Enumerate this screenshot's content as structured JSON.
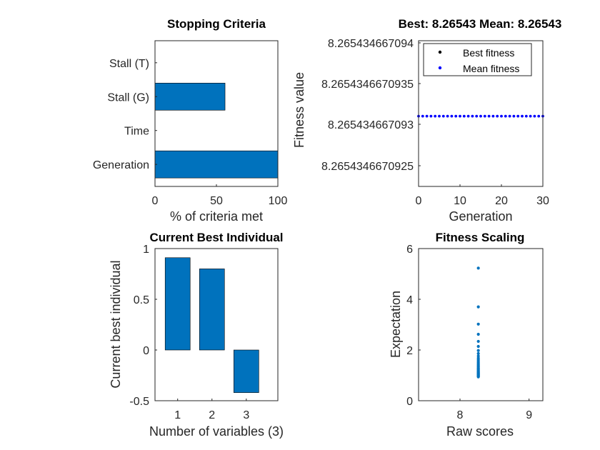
{
  "chart_data": [
    {
      "type": "bar",
      "orientation": "horizontal",
      "title": "Stopping Criteria",
      "xlabel": "% of criteria met",
      "ylabel": "",
      "categories": [
        "Generation",
        "Time",
        "Stall (G)",
        "Stall (T)"
      ],
      "values": [
        100,
        0,
        57,
        0
      ],
      "xlim": [
        0,
        100
      ],
      "xticks": [
        "0",
        "50",
        "100"
      ],
      "bar_color": "#0072BD"
    },
    {
      "type": "scatter",
      "title": "Best: 8.26543 Mean: 8.26543",
      "xlabel": "Generation",
      "ylabel": "Fitness value",
      "xlim": [
        0,
        30
      ],
      "xticks": [
        "0",
        "10",
        "20",
        "30"
      ],
      "yticks": [
        "8.265434667094",
        "8.2654346670935",
        "8.265434667093",
        "8.2654346670925"
      ],
      "legend": {
        "position": "top-right"
      },
      "series": [
        {
          "name": "Best fitness",
          "color": "#000000",
          "y": 8.2654346670931,
          "generations": [
            0,
            1,
            2,
            3,
            4,
            5,
            6,
            7,
            8,
            9,
            10,
            11,
            12,
            13,
            14,
            15,
            16,
            17,
            18,
            19,
            20,
            21,
            22,
            23,
            24,
            25,
            26,
            27,
            28,
            29,
            30
          ]
        },
        {
          "name": "Mean fitness",
          "color": "#0000FF",
          "y": 8.2654346670931,
          "generations": [
            0,
            1,
            2,
            3,
            4,
            5,
            6,
            7,
            8,
            9,
            10,
            11,
            12,
            13,
            14,
            15,
            16,
            17,
            18,
            19,
            20,
            21,
            22,
            23,
            24,
            25,
            26,
            27,
            28,
            29,
            30
          ]
        }
      ]
    },
    {
      "type": "bar",
      "title": "Current Best Individual",
      "xlabel": "Number of variables (3)",
      "ylabel": "Current best individual",
      "categories": [
        "1",
        "2",
        "3"
      ],
      "values": [
        0.91,
        0.8,
        -0.42
      ],
      "ylim": [
        -0.5,
        1
      ],
      "yticks": [
        "-0.5",
        "0",
        "0.5",
        "1"
      ],
      "bar_color": "#0072BD"
    },
    {
      "type": "scatter",
      "title": "Fitness Scaling",
      "xlabel": "Raw scores",
      "ylabel": "Expectation",
      "xlim": [
        7.4,
        9.2
      ],
      "ylim": [
        0,
        6
      ],
      "xticks": [
        "8",
        "9"
      ],
      "yticks": [
        "0",
        "2",
        "4",
        "6"
      ],
      "color": "#0072BD",
      "points": {
        "x": 8.2654,
        "y": [
          5.23,
          3.7,
          3.02,
          2.62,
          2.34,
          2.14,
          1.98,
          1.86,
          1.76,
          1.68,
          1.62,
          1.56,
          1.5,
          1.45,
          1.41,
          1.37,
          1.33,
          1.29,
          1.26,
          1.23,
          1.2,
          1.17,
          1.15,
          1.12,
          1.1,
          1.08,
          1.06,
          1.04,
          1.02,
          1.0,
          0.98,
          0.96,
          0.94
        ]
      }
    }
  ]
}
